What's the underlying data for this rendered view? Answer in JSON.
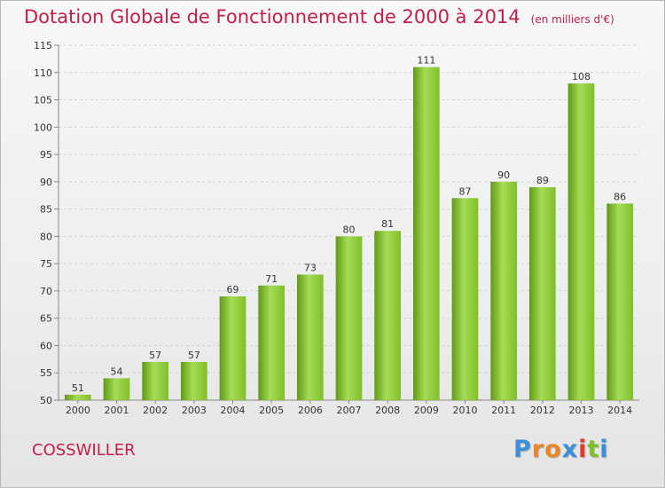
{
  "chart_data": {
    "type": "bar",
    "title": "Dotation Globale de Fonctionnement de 2000 à 2014",
    "subtitle": "(en milliers d'€)",
    "categories": [
      "2000",
      "2001",
      "2002",
      "2003",
      "2004",
      "2005",
      "2006",
      "2007",
      "2008",
      "2009",
      "2010",
      "2011",
      "2012",
      "2013",
      "2014"
    ],
    "values": [
      51,
      54,
      57,
      57,
      69,
      71,
      73,
      80,
      81,
      111,
      87,
      90,
      89,
      108,
      86
    ],
    "ylim": [
      50,
      115
    ],
    "yticks": [
      50,
      55,
      60,
      65,
      70,
      75,
      80,
      85,
      90,
      95,
      100,
      105,
      110,
      115
    ],
    "grid": true,
    "bar_color": "#7fbf2a",
    "bar_color_light": "#a6dc55",
    "bar_color_dark": "#5f9a16"
  },
  "commune": "COSSWILLER",
  "brand": {
    "letters": [
      "P",
      "r",
      "o",
      "x",
      "i",
      "t",
      "i"
    ],
    "colors": [
      "#3a8fd8",
      "#e8862a",
      "#e8862a",
      "#3a8fd8",
      "#e23b2e",
      "#7fbf2a",
      "#3a8fd8"
    ]
  }
}
